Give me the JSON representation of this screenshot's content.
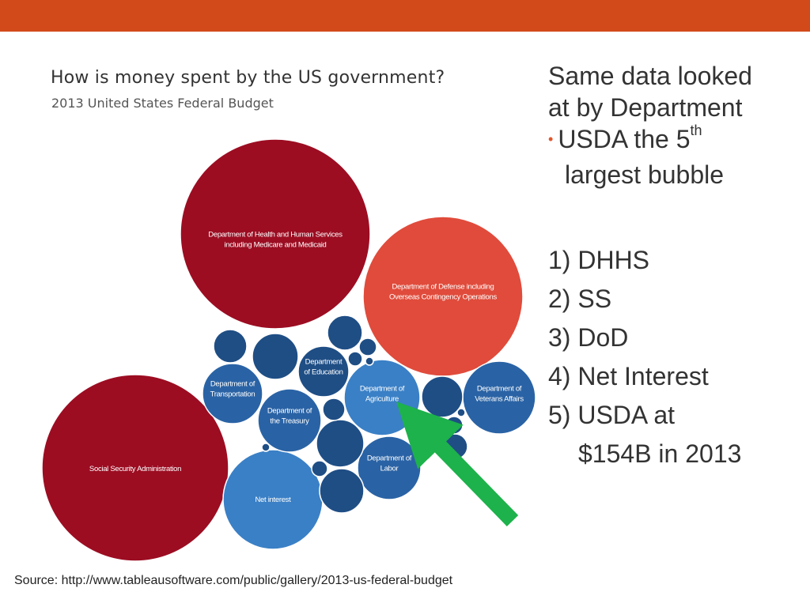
{
  "colors": {
    "top_bar": "#d24a1a",
    "dark_red": "#9c0d22",
    "orange_red": "#e04b3b",
    "navy": "#1f4e85",
    "mid_blue": "#2a63a5",
    "light_blue": "#3a80c6",
    "arrow": "#1db24b",
    "bullet": "#e2552b"
  },
  "chart_data": {
    "type": "bubble",
    "title": "How is money spent by the US government?",
    "subtitle": "2013 United States Federal Budget",
    "bubbles": [
      {
        "label_lines": [
          "Department of Health and Human Services",
          "including Medicare and Medicaid"
        ],
        "rank": 1,
        "relative_size": 1.0,
        "color": "dark_red"
      },
      {
        "label_lines": [
          "Social Security Administration"
        ],
        "rank": 2,
        "relative_size": 0.97,
        "color": "dark_red"
      },
      {
        "label_lines": [
          "Department of Defense including",
          "Overseas Contingency Operations"
        ],
        "rank": 3,
        "relative_size": 0.7,
        "color": "orange_red"
      },
      {
        "label_lines": [
          "Net interest"
        ],
        "rank": 4,
        "relative_size": 0.28,
        "color": "light_blue"
      },
      {
        "label_lines": [
          "Department of",
          "Agriculture"
        ],
        "rank": 5,
        "relative_size": 0.16,
        "color": "light_blue"
      },
      {
        "label_lines": [
          "Department of",
          "Veterans Affairs"
        ],
        "relative_size": 0.14,
        "color": "mid_blue"
      },
      {
        "label_lines": [
          "Department of",
          "Labor"
        ],
        "relative_size": 0.11,
        "color": "mid_blue"
      },
      {
        "label_lines": [
          "Department of",
          "Transportation"
        ],
        "relative_size": 0.1,
        "color": "mid_blue"
      },
      {
        "label_lines": [
          "Department of",
          "the Treasury"
        ],
        "relative_size": 0.1,
        "color": "mid_blue"
      },
      {
        "label_lines": [
          "Department",
          "of Education"
        ],
        "relative_size": 0.065,
        "color": "navy"
      },
      {
        "label_lines": [],
        "relative_size": 0.06,
        "color": "navy"
      },
      {
        "label_lines": [],
        "relative_size": 0.055,
        "color": "navy"
      },
      {
        "label_lines": [],
        "relative_size": 0.055,
        "color": "navy"
      },
      {
        "label_lines": [],
        "relative_size": 0.05,
        "color": "navy"
      },
      {
        "label_lines": [],
        "relative_size": 0.04,
        "color": "navy"
      },
      {
        "label_lines": [],
        "relative_size": 0.032,
        "color": "navy"
      },
      {
        "label_lines": [],
        "relative_size": 0.03,
        "color": "navy"
      },
      {
        "label_lines": [],
        "relative_size": 0.012,
        "color": "navy"
      },
      {
        "label_lines": [],
        "relative_size": 0.012,
        "color": "navy"
      },
      {
        "label_lines": [],
        "relative_size": 0.01,
        "color": "navy"
      },
      {
        "label_lines": [],
        "relative_size": 0.008,
        "color": "navy"
      },
      {
        "label_lines": [],
        "relative_size": 0.007,
        "color": "navy"
      },
      {
        "label_lines": [],
        "relative_size": 0.004,
        "color": "navy"
      },
      {
        "label_lines": [],
        "relative_size": 0.002,
        "color": "navy"
      },
      {
        "label_lines": [],
        "relative_size": 0.002,
        "color": "navy"
      },
      {
        "label_lines": [],
        "relative_size": 0.002,
        "color": "navy"
      },
      {
        "label_lines": [],
        "relative_size": 0.001,
        "color": "navy"
      }
    ],
    "highlight": {
      "marker": "green arrow",
      "points_to": "Department of Agriculture"
    }
  },
  "side_text": {
    "heading_line1": "Same data looked",
    "heading_line2": "at by Department",
    "bullet_text": "USDA the 5",
    "bullet_sup": "th",
    "bullet_line2": "largest bubble",
    "ranks": [
      "1) DHHS",
      "2) SS",
      "3) DoD",
      "4) Net Interest",
      "5) USDA at"
    ],
    "rank5_cont": "$154B in 2013"
  },
  "source": "Source: http://www.tableausoftware.com/public/gallery/2013-us-federal-budget"
}
